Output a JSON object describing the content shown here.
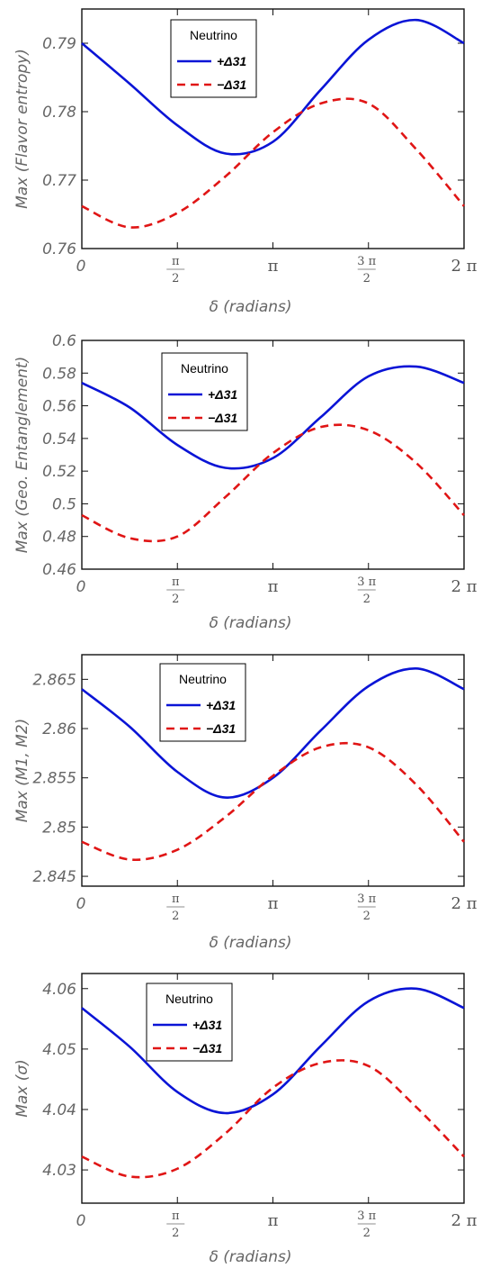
{
  "colors": {
    "plus": "#0a14d6",
    "minus": "#e01515",
    "frame": "#111111",
    "text": "#666666"
  },
  "chart_data": [
    {
      "type": "line",
      "xlabel": "δ (radians)",
      "ylabel": "Max (Flavor entropy)",
      "xlim": [
        0,
        6.2832
      ],
      "ylim": [
        0.76,
        0.795
      ],
      "xticks": [
        {
          "value": 0,
          "label": "0"
        },
        {
          "value": 1.5708,
          "num": "π",
          "den": "2"
        },
        {
          "value": 3.1416,
          "label": "π"
        },
        {
          "value": 4.7124,
          "num": "3 π",
          "den": "2"
        },
        {
          "value": 6.2832,
          "label": "2 π"
        }
      ],
      "yticks": [
        {
          "value": 0.76,
          "label": "0.76"
        },
        {
          "value": 0.77,
          "label": "0.77"
        },
        {
          "value": 0.78,
          "label": "0.78"
        },
        {
          "value": 0.79,
          "label": "0.79"
        }
      ],
      "legend": {
        "title": "Neutrino",
        "position": "top-left"
      },
      "series": [
        {
          "name": "+Δ31",
          "style": "solid",
          "x": [
            0,
            0.785,
            1.571,
            2.356,
            3.142,
            3.927,
            4.712,
            5.498,
            6.283
          ],
          "y": [
            0.79,
            0.7841,
            0.778,
            0.7739,
            0.7756,
            0.7832,
            0.7905,
            0.7934,
            0.79
          ]
        },
        {
          "name": "−Δ31",
          "style": "dashed",
          "x": [
            0,
            0.785,
            1.571,
            2.356,
            3.142,
            3.927,
            4.712,
            5.498,
            6.283
          ],
          "y": [
            0.7662,
            0.7631,
            0.7652,
            0.7705,
            0.777,
            0.7812,
            0.7812,
            0.7745,
            0.7662
          ]
        }
      ]
    },
    {
      "type": "line",
      "xlabel": "δ (radians)",
      "ylabel": "Max (Geo. Entanglement)",
      "xlim": [
        0,
        6.2832
      ],
      "ylim": [
        0.46,
        0.6
      ],
      "xticks": [
        {
          "value": 0,
          "label": "0"
        },
        {
          "value": 1.5708,
          "num": "π",
          "den": "2"
        },
        {
          "value": 3.1416,
          "label": "π"
        },
        {
          "value": 4.7124,
          "num": "3 π",
          "den": "2"
        },
        {
          "value": 6.2832,
          "label": "2 π"
        }
      ],
      "yticks": [
        {
          "value": 0.46,
          "label": "0.46"
        },
        {
          "value": 0.48,
          "label": "0.48"
        },
        {
          "value": 0.5,
          "label": "0.5"
        },
        {
          "value": 0.52,
          "label": "0.52"
        },
        {
          "value": 0.54,
          "label": "0.54"
        },
        {
          "value": 0.56,
          "label": "0.56"
        },
        {
          "value": 0.58,
          "label": "0.58"
        },
        {
          "value": 0.6,
          "label": "0.6"
        }
      ],
      "legend": {
        "title": "Neutrino",
        "position": "top-left"
      },
      "series": [
        {
          "name": "+Δ31",
          "style": "solid",
          "x": [
            0,
            0.785,
            1.571,
            2.356,
            3.142,
            3.927,
            4.712,
            5.498,
            6.283
          ],
          "y": [
            0.574,
            0.559,
            0.536,
            0.522,
            0.528,
            0.553,
            0.578,
            0.584,
            0.574
          ]
        },
        {
          "name": "−Δ31",
          "style": "dashed",
          "x": [
            0,
            0.785,
            1.571,
            2.356,
            3.142,
            3.927,
            4.712,
            5.498,
            6.283
          ],
          "y": [
            0.493,
            0.479,
            0.48,
            0.504,
            0.531,
            0.547,
            0.545,
            0.525,
            0.493
          ]
        }
      ]
    },
    {
      "type": "line",
      "xlabel": "δ (radians)",
      "ylabel": "Max (M1, M2)",
      "xlim": [
        0,
        6.2832
      ],
      "ylim": [
        2.844,
        2.8675
      ],
      "xticks": [
        {
          "value": 0,
          "label": "0"
        },
        {
          "value": 1.5708,
          "num": "π",
          "den": "2"
        },
        {
          "value": 3.1416,
          "label": "π"
        },
        {
          "value": 4.7124,
          "num": "3 π",
          "den": "2"
        },
        {
          "value": 6.2832,
          "label": "2 π"
        }
      ],
      "yticks": [
        {
          "value": 2.845,
          "label": "2.845"
        },
        {
          "value": 2.85,
          "label": "2.85"
        },
        {
          "value": 2.855,
          "label": "2.855"
        },
        {
          "value": 2.86,
          "label": "2.86"
        },
        {
          "value": 2.865,
          "label": "2.865"
        }
      ],
      "legend": {
        "title": "Neutrino",
        "position": "top-left"
      },
      "series": [
        {
          "name": "+Δ31",
          "style": "solid",
          "x": [
            0,
            0.785,
            1.571,
            2.356,
            3.142,
            3.927,
            4.712,
            5.498,
            6.283
          ],
          "y": [
            2.864,
            2.8602,
            2.8556,
            2.853,
            2.855,
            2.8598,
            2.8643,
            2.8661,
            2.864
          ]
        },
        {
          "name": "−Δ31",
          "style": "dashed",
          "x": [
            0,
            0.785,
            1.571,
            2.356,
            3.142,
            3.927,
            4.712,
            5.498,
            6.283
          ],
          "y": [
            2.8485,
            2.8467,
            2.8477,
            2.851,
            2.8552,
            2.8581,
            2.8581,
            2.8543,
            2.8485
          ]
        }
      ]
    },
    {
      "type": "line",
      "xlabel": "δ (radians)",
      "ylabel": "Max (σ)",
      "xlim": [
        0,
        6.2832
      ],
      "ylim": [
        4.0245,
        4.0625
      ],
      "xticks": [
        {
          "value": 0,
          "label": "0"
        },
        {
          "value": 1.5708,
          "num": "π",
          "den": "2"
        },
        {
          "value": 3.1416,
          "label": "π"
        },
        {
          "value": 4.7124,
          "num": "3 π",
          "den": "2"
        },
        {
          "value": 6.2832,
          "label": "2 π"
        }
      ],
      "yticks": [
        {
          "value": 4.03,
          "label": "4.03"
        },
        {
          "value": 4.04,
          "label": "4.04"
        },
        {
          "value": 4.05,
          "label": "4.05"
        },
        {
          "value": 4.06,
          "label": "4.06"
        }
      ],
      "legend": {
        "title": "Neutrino",
        "position": "top-left"
      },
      "series": [
        {
          "name": "+Δ31",
          "style": "solid",
          "x": [
            0,
            0.785,
            1.571,
            2.356,
            3.142,
            3.927,
            4.712,
            5.498,
            6.283
          ],
          "y": [
            4.0568,
            4.0504,
            4.0429,
            4.0394,
            4.0425,
            4.0505,
            4.0579,
            4.06,
            4.0568
          ]
        },
        {
          "name": "−Δ31",
          "style": "dashed",
          "x": [
            0,
            0.785,
            1.571,
            2.356,
            3.142,
            3.927,
            4.712,
            5.498,
            6.283
          ],
          "y": [
            4.0322,
            4.0289,
            4.0302,
            4.036,
            4.0436,
            4.0477,
            4.0472,
            4.0404,
            4.0322
          ]
        }
      ]
    }
  ]
}
